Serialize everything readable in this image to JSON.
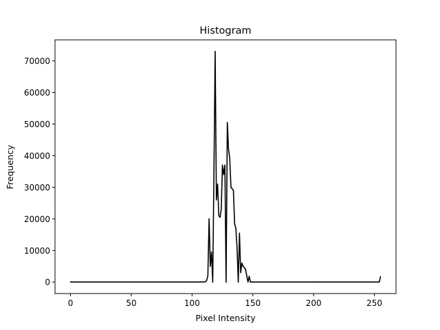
{
  "chart_data": {
    "type": "line",
    "title": "Histogram",
    "xlabel": "Pixel Intensity",
    "ylabel": "Frequency",
    "xlim": [
      -12.75,
      267.75
    ],
    "ylim": [
      -3650,
      76650
    ],
    "xticks": [
      0,
      50,
      100,
      150,
      200,
      250
    ],
    "yticks": [
      0,
      10000,
      20000,
      30000,
      40000,
      50000,
      60000,
      70000
    ],
    "grid": false,
    "series": [
      {
        "color": "#000000",
        "points": [
          [
            0,
            0
          ],
          [
            110,
            0
          ],
          [
            111,
            100
          ],
          [
            112,
            500
          ],
          [
            113,
            2000
          ],
          [
            114,
            20000
          ],
          [
            115,
            5000
          ],
          [
            116,
            9500
          ],
          [
            117,
            0
          ],
          [
            118,
            35000
          ],
          [
            119,
            73000
          ],
          [
            120,
            26000
          ],
          [
            121,
            31000
          ],
          [
            122,
            21000
          ],
          [
            123,
            20500
          ],
          [
            124,
            23000
          ],
          [
            125,
            37000
          ],
          [
            126,
            34000
          ],
          [
            127,
            37000
          ],
          [
            128,
            0
          ],
          [
            129,
            50500
          ],
          [
            130,
            42000
          ],
          [
            131,
            39000
          ],
          [
            132,
            30000
          ],
          [
            133,
            29500
          ],
          [
            134,
            29000
          ],
          [
            135,
            18500
          ],
          [
            136,
            17000
          ],
          [
            137,
            11000
          ],
          [
            138,
            0
          ],
          [
            139,
            15500
          ],
          [
            140,
            3000
          ],
          [
            141,
            6000
          ],
          [
            142,
            5000
          ],
          [
            143,
            4500
          ],
          [
            144,
            4000
          ],
          [
            145,
            2000
          ],
          [
            146,
            0
          ],
          [
            147,
            1800
          ],
          [
            148,
            0
          ],
          [
            149,
            0
          ],
          [
            150,
            0
          ],
          [
            200,
            0
          ],
          [
            253,
            0
          ],
          [
            254,
            0
          ],
          [
            255,
            1700
          ]
        ]
      }
    ]
  }
}
